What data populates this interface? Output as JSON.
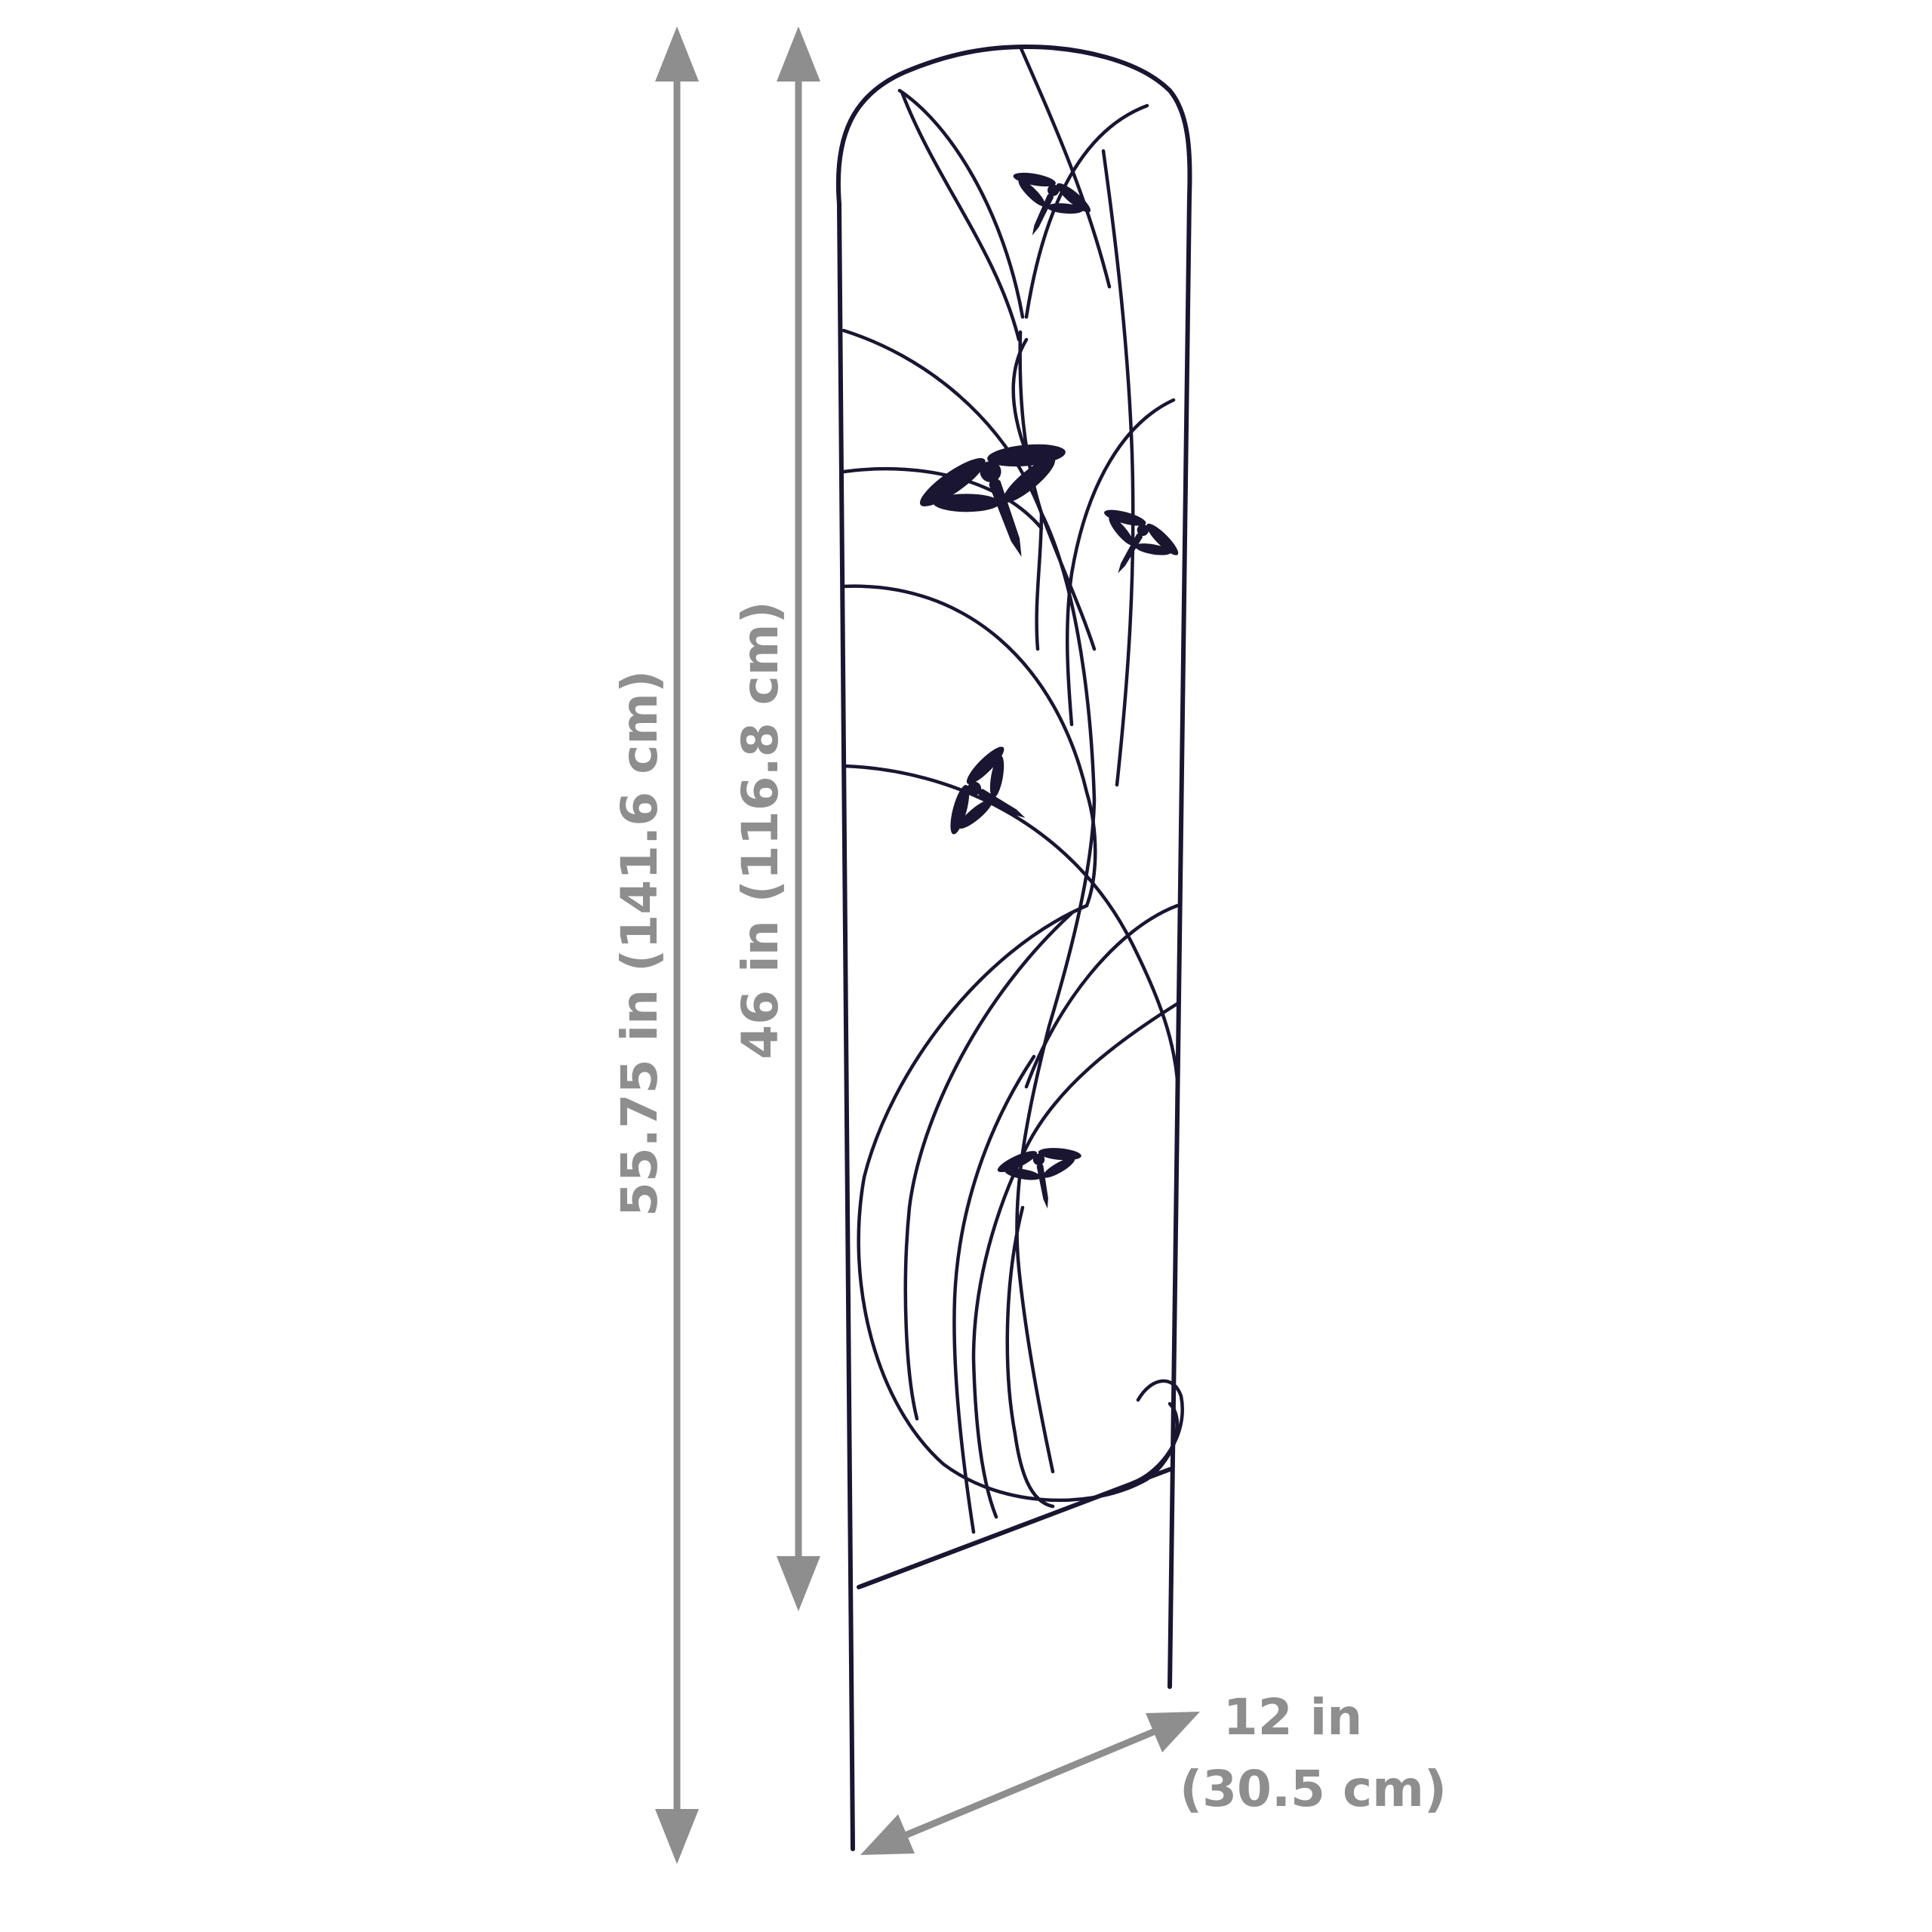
{
  "dimensions": {
    "overall_height": "55.75 in (141.6 cm)",
    "panel_height": "46 in (116.8 cm)",
    "width_line1": "12 in",
    "width_line2": "(30.5 cm)"
  },
  "colors": {
    "dimension_gray": "#8e8e8e",
    "wire": "#1a1530"
  },
  "subject": {
    "object": "dragonfly-garden-trellis",
    "dragonfly_count": 5
  }
}
